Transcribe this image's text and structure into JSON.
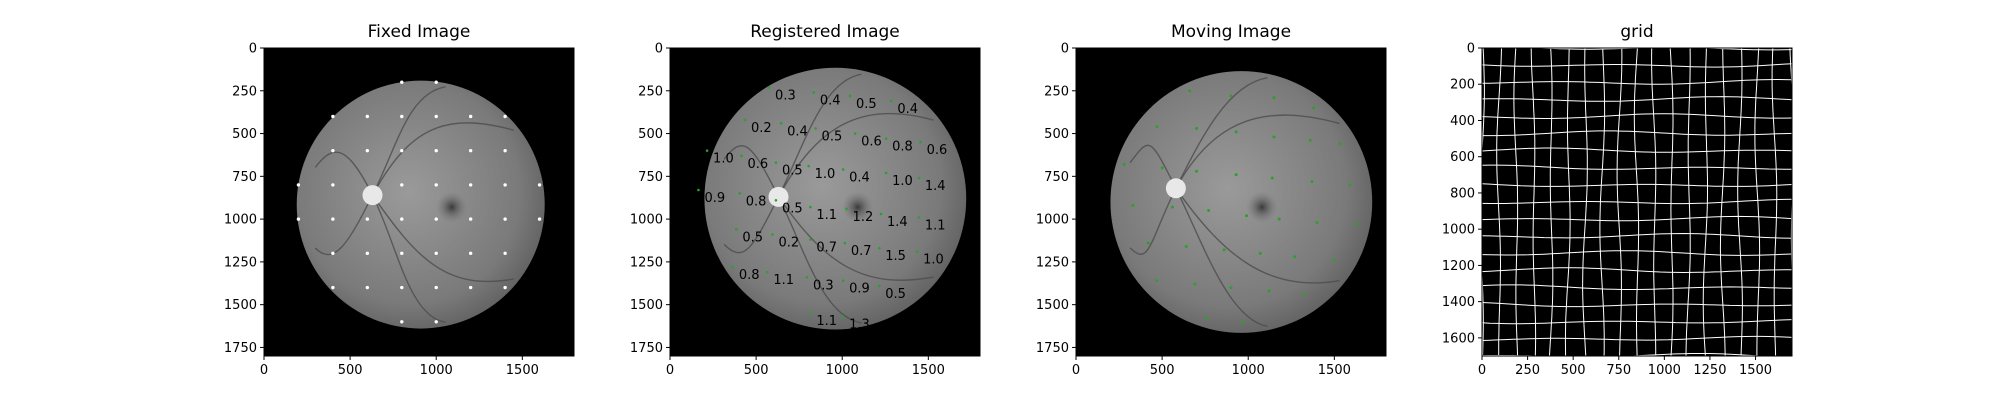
{
  "panels": [
    {
      "title": "Fixed Image",
      "x_ticks": [
        "0",
        "500",
        "1000",
        "1500"
      ],
      "y_ticks": [
        "0",
        "250",
        "500",
        "750",
        "1000",
        "1250",
        "1500",
        "1750"
      ]
    },
    {
      "title": "Registered Image",
      "x_ticks": [
        "0",
        "500",
        "1000",
        "1500"
      ],
      "y_ticks": [
        "0",
        "250",
        "500",
        "750",
        "1000",
        "1250",
        "1500",
        "1750"
      ],
      "error_labels": [
        "0.3",
        "0.4",
        "0.5",
        "0.4",
        "0.2",
        "0.4",
        "0.5",
        "0.6",
        "0.8",
        "0.6",
        "1.0",
        "0.6",
        "0.5",
        "1.0",
        "0.4",
        "1.0",
        "1.4",
        "0.9",
        "0.8",
        "0.5",
        "1.1",
        "1.2",
        "1.4",
        "1.1",
        "0.5",
        "0.2",
        "0.7",
        "0.7",
        "1.5",
        "1.0",
        "0.8",
        "1.1",
        "0.3",
        "0.9",
        "0.5",
        "1.1",
        "1.3"
      ]
    },
    {
      "title": "Moving Image",
      "x_ticks": [
        "0",
        "500",
        "1000",
        "1500"
      ],
      "y_ticks": [
        "0",
        "250",
        "500",
        "750",
        "1000",
        "1250",
        "1500",
        "1750"
      ]
    },
    {
      "title": "grid",
      "x_ticks": [
        "0",
        "250",
        "500",
        "750",
        "1000",
        "1250",
        "1500"
      ],
      "y_ticks": [
        "0",
        "200",
        "400",
        "600",
        "800",
        "1000",
        "1200",
        "1400",
        "1600"
      ]
    }
  ],
  "colors": {
    "background": "#000000",
    "fundus": "#7a7a7a",
    "landmark_fixed": "#ffffff",
    "landmark_moving": "#2ca02c",
    "grid_lines": "#ffffff"
  }
}
